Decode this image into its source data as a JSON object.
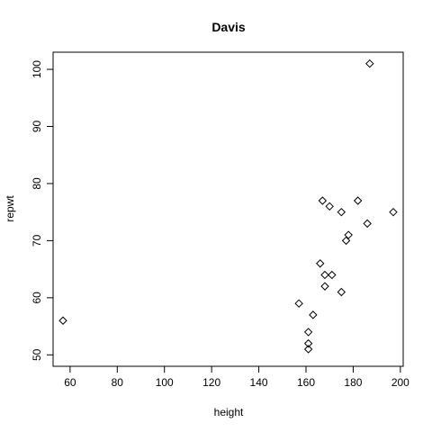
{
  "chart_data": {
    "type": "scatter",
    "title": "Davis",
    "xlabel": "height",
    "ylabel": "repwt",
    "xlim": [
      52.8,
      201.2
    ],
    "ylim": [
      48.0,
      103.0
    ],
    "xticks": [
      60,
      80,
      100,
      120,
      140,
      160,
      180,
      200
    ],
    "yticks": [
      50,
      60,
      70,
      80,
      90,
      100
    ],
    "marker": "diamond",
    "grid": false,
    "points": [
      {
        "x": 57,
        "y": 56
      },
      {
        "x": 157,
        "y": 59
      },
      {
        "x": 161,
        "y": 51
      },
      {
        "x": 161,
        "y": 52
      },
      {
        "x": 161,
        "y": 54
      },
      {
        "x": 163,
        "y": 57
      },
      {
        "x": 166,
        "y": 66
      },
      {
        "x": 167,
        "y": 77
      },
      {
        "x": 168,
        "y": 64
      },
      {
        "x": 168,
        "y": 62
      },
      {
        "x": 170,
        "y": 76
      },
      {
        "x": 171,
        "y": 64
      },
      {
        "x": 175,
        "y": 75
      },
      {
        "x": 175,
        "y": 61
      },
      {
        "x": 177,
        "y": 70
      },
      {
        "x": 178,
        "y": 71
      },
      {
        "x": 182,
        "y": 77
      },
      {
        "x": 186,
        "y": 73
      },
      {
        "x": 187,
        "y": 101
      },
      {
        "x": 197,
        "y": 75
      }
    ]
  }
}
